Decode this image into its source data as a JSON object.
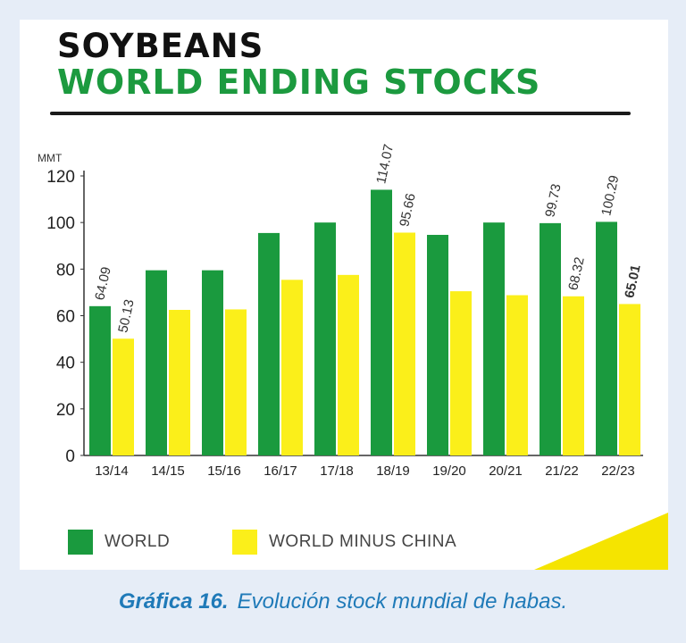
{
  "colors": {
    "world": "#1a9a3e",
    "world_minus_china": "#fbef1a",
    "title_green": "#1c9a3f",
    "caption_blue": "#1f7ab8",
    "corner_yellow": "#f5e400"
  },
  "caption": {
    "label": "Gráfica 16.",
    "text": "Evolución stock mundial de habas."
  },
  "legend": {
    "world": "WORLD",
    "world_minus_china": "WORLD MINUS CHINA"
  },
  "chart_data": {
    "type": "bar",
    "title": "SOYBEANS",
    "subtitle": "WORLD ENDING STOCKS",
    "xlabel": "",
    "ylabel": "MMT",
    "ylim": [
      0,
      120
    ],
    "yticks": [
      "0",
      "20",
      "40",
      "60",
      "80",
      "100",
      "120"
    ],
    "grid": false,
    "legend_position": "bottom",
    "categories": [
      "13/14",
      "14/15",
      "15/16",
      "16/17",
      "17/18",
      "18/19",
      "19/20",
      "20/21",
      "21/22",
      "22/23"
    ],
    "series": [
      {
        "name": "WORLD",
        "values": [
          64.09,
          79.5,
          79.5,
          95.5,
          100,
          114.07,
          94.7,
          100,
          99.73,
          100.29
        ],
        "labels": [
          "64.09",
          "",
          "",
          "",
          "",
          "114.07",
          "",
          "",
          "99.73",
          "100.29"
        ]
      },
      {
        "name": "WORLD MINUS CHINA",
        "values": [
          50.13,
          62.5,
          62.7,
          75.4,
          77.5,
          95.66,
          70.5,
          68.8,
          68.32,
          65.01
        ],
        "labels": [
          "50.13",
          "",
          "",
          "",
          "",
          "95.66",
          "",
          "",
          "68.32",
          "65.01"
        ]
      }
    ]
  }
}
